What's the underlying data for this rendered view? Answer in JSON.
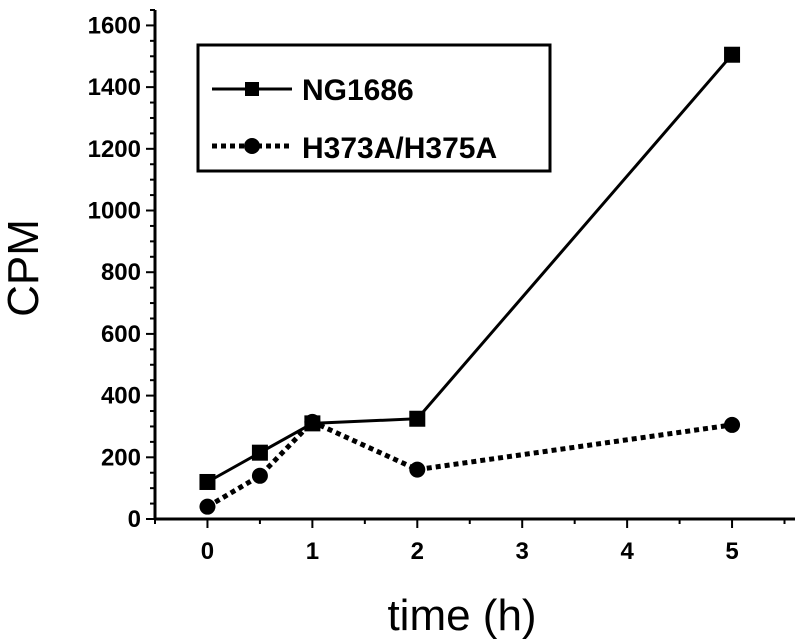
{
  "chart_data": {
    "type": "line",
    "title": "",
    "xlabel": "time (h)",
    "ylabel": "CPM",
    "x": [
      0,
      0.5,
      1,
      2,
      5
    ],
    "xticks": [
      0,
      1,
      2,
      3,
      4,
      5
    ],
    "yticks": [
      0,
      200,
      400,
      600,
      800,
      1000,
      1200,
      1400,
      1600
    ],
    "xlim": [
      -0.5,
      5.6
    ],
    "ylim": [
      0,
      1650
    ],
    "grid": false,
    "legend_position": "top-left",
    "series": [
      {
        "name": "NG1686",
        "values": [
          120,
          215,
          310,
          325,
          1505
        ],
        "marker": "square",
        "line_style": "solid",
        "color": "#000000"
      },
      {
        "name": "H373A/H375A",
        "values": [
          40,
          140,
          315,
          160,
          305
        ],
        "marker": "circle",
        "line_style": "dotted",
        "color": "#000000"
      }
    ]
  }
}
